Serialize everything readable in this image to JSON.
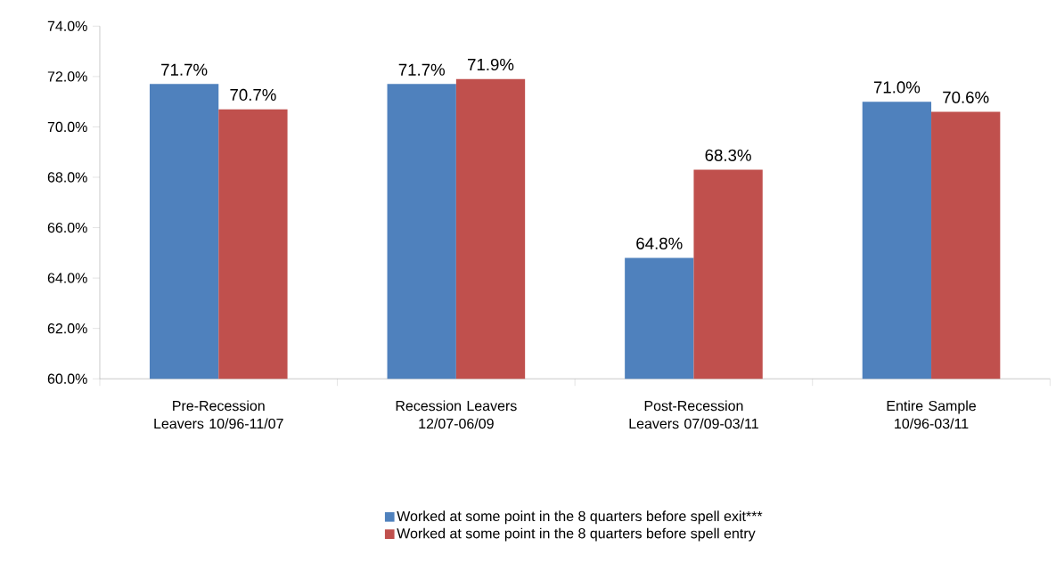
{
  "chart_data": {
    "type": "bar",
    "categories": [
      "Pre-Recession Leavers 10/96-11/07",
      "Recession Leavers 12/07-06/09",
      "Post-Recession Leavers 07/09-03/11",
      "Entire Sample 10/96-03/11"
    ],
    "series": [
      {
        "name": "Worked at some point in the 8 quarters before spell exit***",
        "color": "#4f81bd",
        "values": [
          71.7,
          71.7,
          64.8,
          71.0
        ],
        "value_labels": [
          "71.7%",
          "71.7%",
          "64.8%",
          "71.0%"
        ]
      },
      {
        "name": "Worked at some point in the 8 quarters before spell entry",
        "color": "#c0504d",
        "values": [
          70.7,
          71.9,
          68.3,
          70.6
        ],
        "value_labels": [
          "70.7%",
          "71.9%",
          "68.3%",
          "70.6%"
        ]
      }
    ],
    "ylim": [
      60,
      74
    ],
    "yticks": [
      {
        "value": 60,
        "label": "60.0%"
      },
      {
        "value": 62,
        "label": "62.0%"
      },
      {
        "value": 64,
        "label": "64.0%"
      },
      {
        "value": 66,
        "label": "66.0%"
      },
      {
        "value": 68,
        "label": "68.0%"
      },
      {
        "value": 70,
        "label": "70.0%"
      },
      {
        "value": 72,
        "label": "72.0%"
      },
      {
        "value": 74,
        "label": "74.0%"
      }
    ],
    "grid": false,
    "legend": "bottom"
  }
}
